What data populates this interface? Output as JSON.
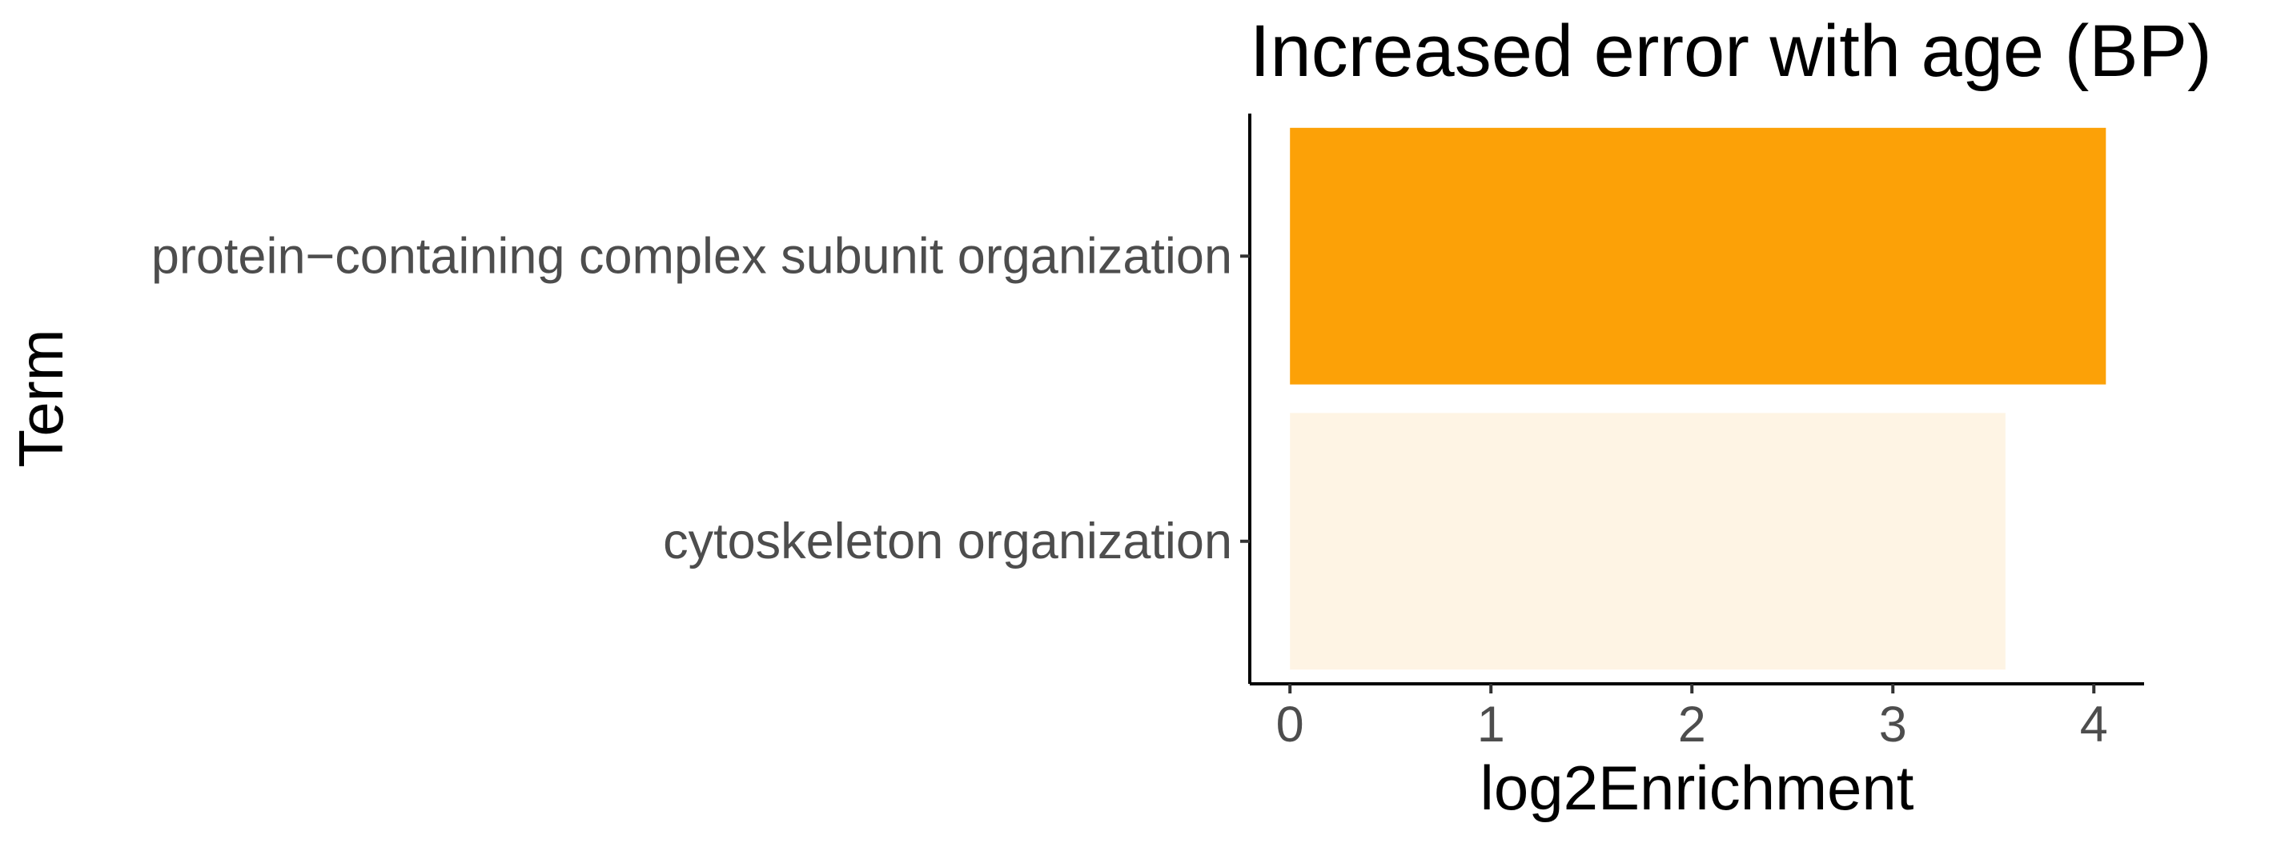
{
  "chart_data": {
    "type": "bar",
    "orientation": "horizontal",
    "title": "Increased error with age (BP)",
    "xlabel": "log2Enrichment",
    "ylabel": "Term",
    "categories": [
      "protein−containing complex subunit organization",
      "cytoskeleton organization"
    ],
    "values": [
      4.06,
      3.56
    ],
    "bar_colors": [
      "#FCA107",
      "#FEF4E4"
    ],
    "xlim": [
      -0.2,
      4.25
    ],
    "xticks": [
      0,
      1,
      2,
      3,
      4
    ],
    "grid": false,
    "legend": "none"
  }
}
